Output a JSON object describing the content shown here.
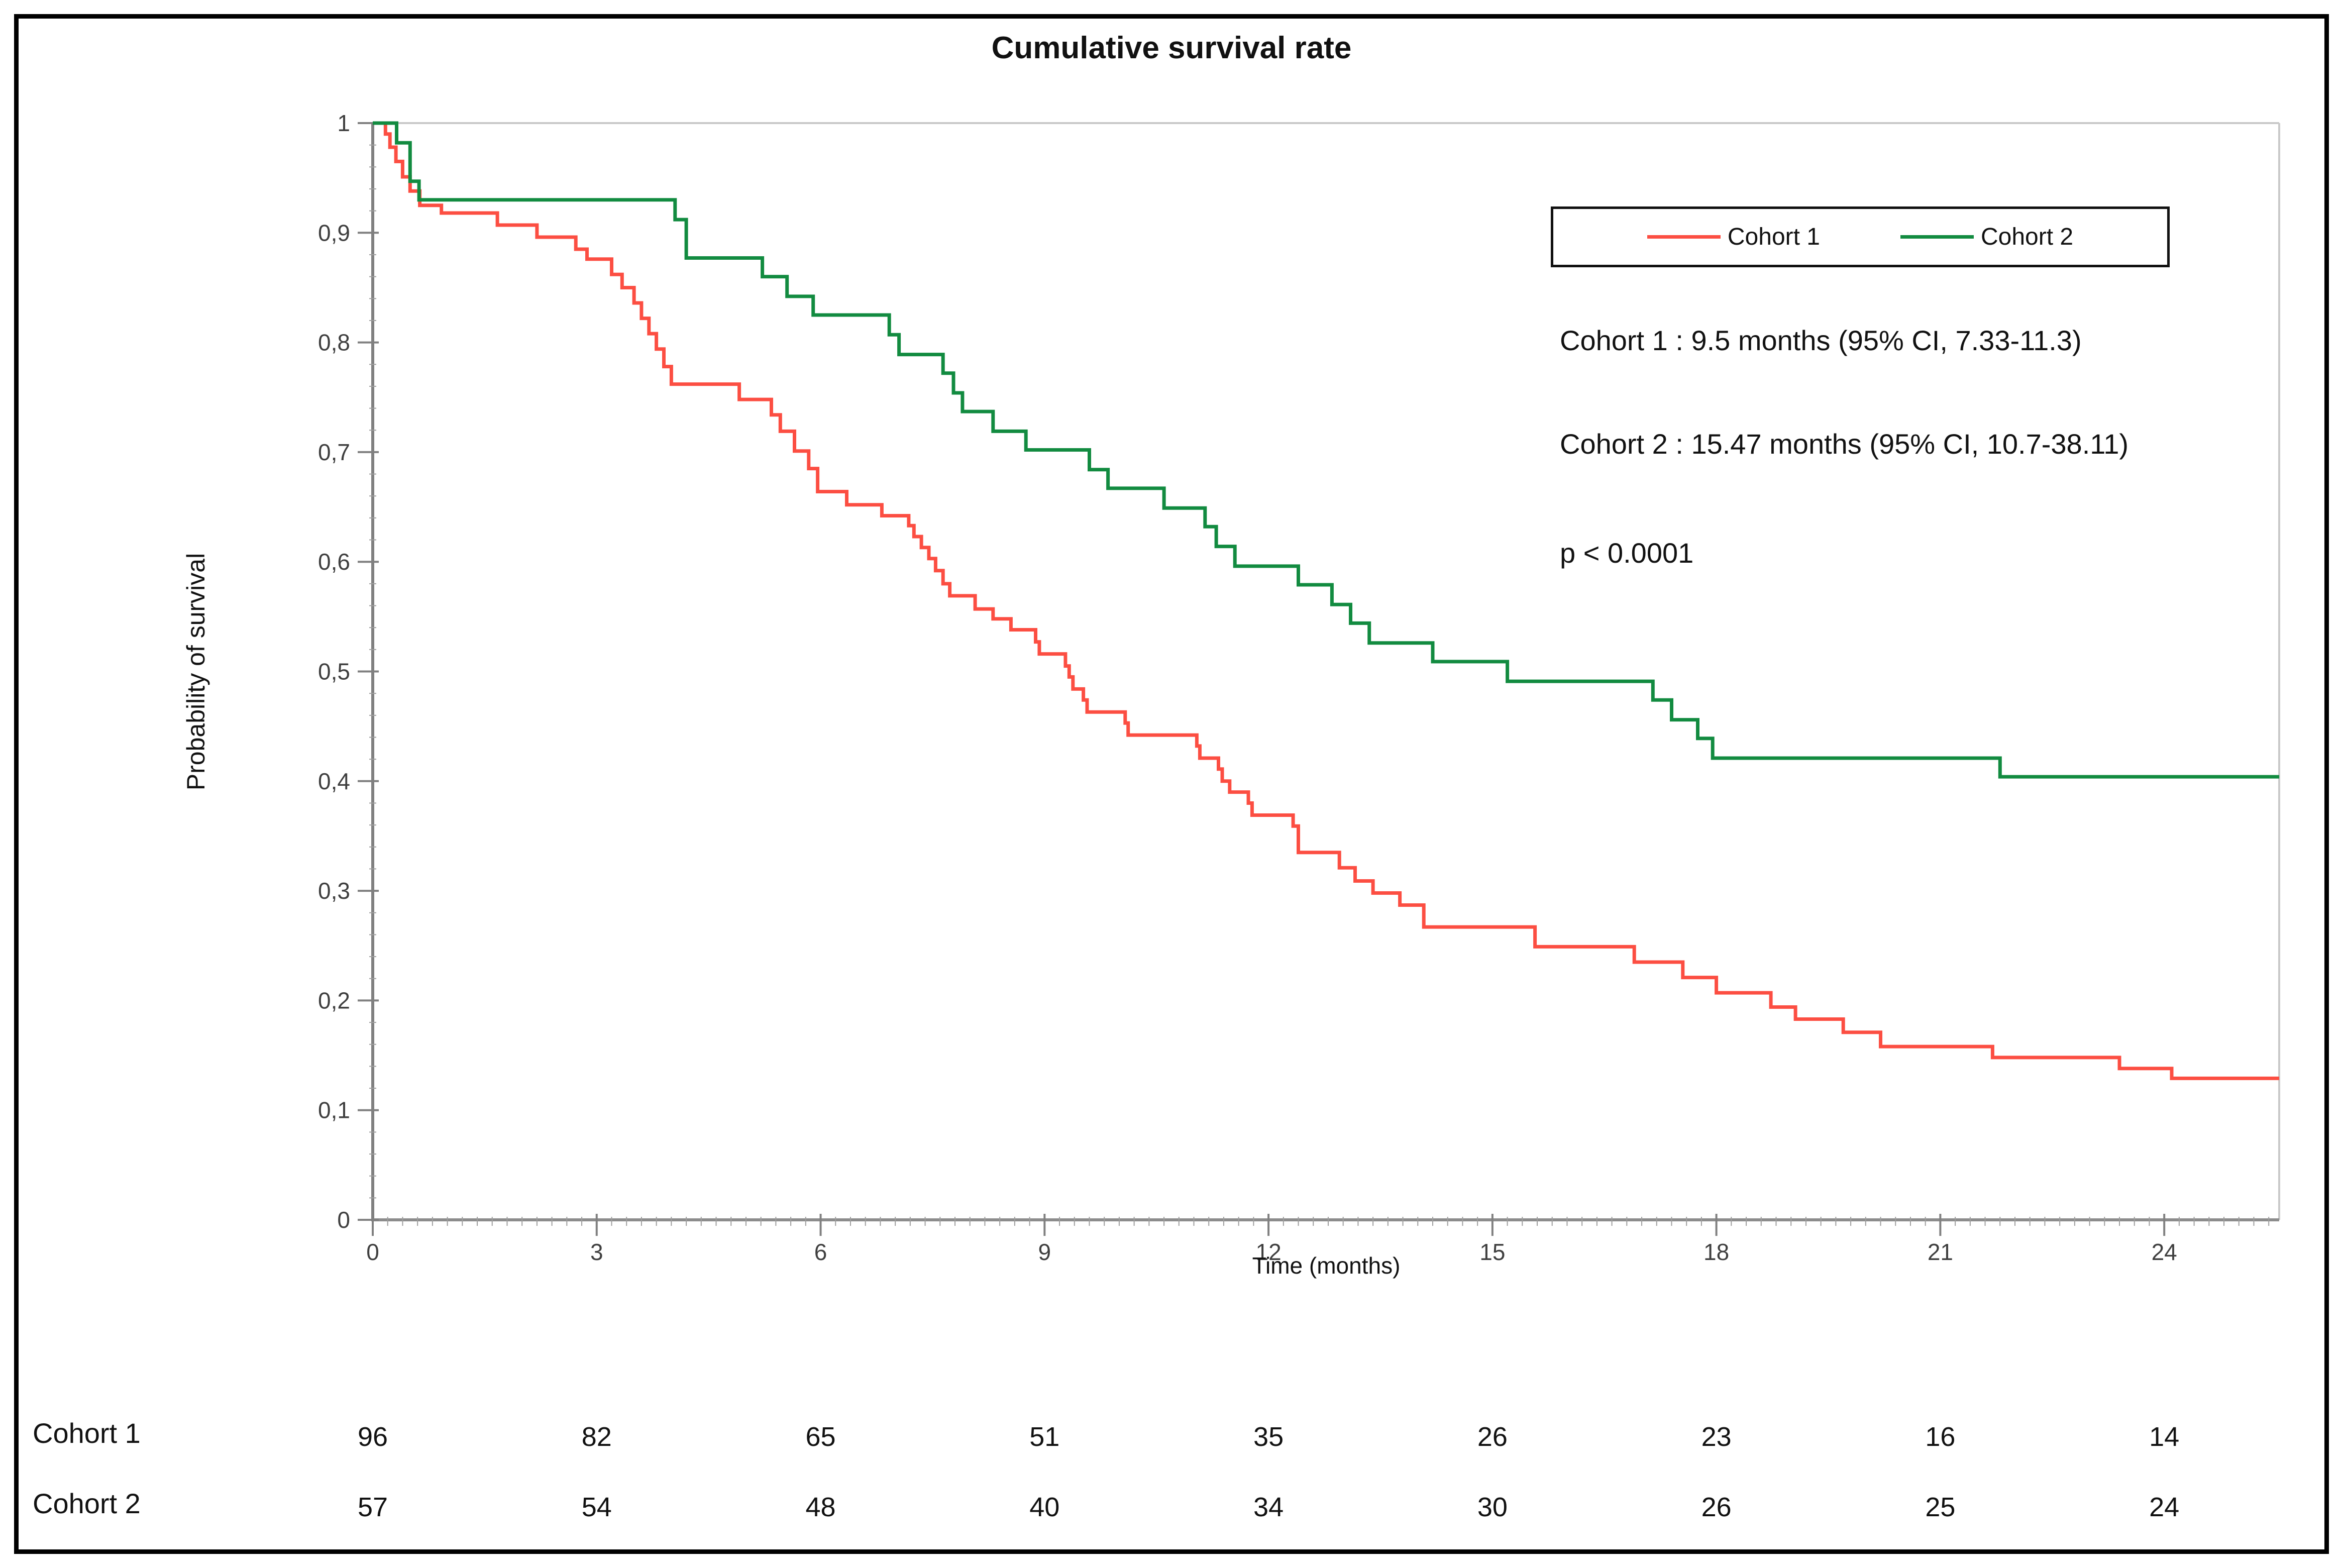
{
  "title": "Cumulative survival rate",
  "colors": {
    "cohort1": "#FC4E42",
    "cohort2": "#128B40",
    "axis": "#8C8C8C",
    "major_tick": "#808080",
    "minor_tick": "#9E9E9E",
    "tick_label": "#3F3F3F",
    "plot_border": "#C9C9C9",
    "text": "#111111"
  },
  "legend": {
    "items": [
      {
        "label": "Cohort 1",
        "color": "#FC4E42"
      },
      {
        "label": "Cohort 2",
        "color": "#128B40"
      }
    ]
  },
  "annotations": {
    "line1": "Cohort 1 : 9.5 months (95% CI, 7.33-11.3)",
    "line2": "Cohort 2 : 15.47 months (95% CI, 10.7-38.11)",
    "line3": "p < 0.0001"
  },
  "chart_data": {
    "type": "line",
    "subtype": "kaplan-meier-step",
    "title": "Cumulative survival rate",
    "xlabel": "Time (months)",
    "ylabel": "Probability of survival",
    "xlim": [
      0,
      25.54
    ],
    "ylim": [
      0,
      1
    ],
    "grid": false,
    "legend_position": "top-right-inside",
    "x_ticks": [
      0,
      3,
      6,
      9,
      12,
      15,
      18,
      21,
      24
    ],
    "x_tick_labels": [
      "0",
      "3",
      "6",
      "9",
      "12",
      "15",
      "18",
      "21",
      "24"
    ],
    "y_ticks": [
      {
        "v": 1.0,
        "label": "1"
      },
      {
        "v": 0.9,
        "label": "0,9"
      },
      {
        "v": 0.8,
        "label": "0,8"
      },
      {
        "v": 0.7,
        "label": "0,7"
      },
      {
        "v": 0.6,
        "label": "0,6"
      },
      {
        "v": 0.5,
        "label": "0,5"
      },
      {
        "v": 0.4,
        "label": "0,4"
      },
      {
        "v": 0.3,
        "label": "0,3"
      },
      {
        "v": 0.2,
        "label": "0,2"
      },
      {
        "v": 0.1,
        "label": "0,1"
      },
      {
        "v": 0.0,
        "label": "0"
      }
    ],
    "series": [
      {
        "name": "Cohort 1",
        "color": "#FC4E42",
        "median_months": 9.5,
        "ci_95": "7.33-11.3",
        "points": [
          [
            0,
            1
          ],
          [
            0.17,
            0.99
          ],
          [
            0.23,
            0.978
          ],
          [
            0.31,
            0.965
          ],
          [
            0.4,
            0.951
          ],
          [
            0.5,
            0.938
          ],
          [
            0.63,
            0.925
          ],
          [
            0.92,
            0.918
          ],
          [
            1.67,
            0.907
          ],
          [
            2.2,
            0.896
          ],
          [
            2.72,
            0.885
          ],
          [
            2.87,
            0.876
          ],
          [
            3.2,
            0.862
          ],
          [
            3.34,
            0.85
          ],
          [
            3.5,
            0.836
          ],
          [
            3.6,
            0.822
          ],
          [
            3.7,
            0.808
          ],
          [
            3.8,
            0.794
          ],
          [
            3.9,
            0.778
          ],
          [
            4.0,
            0.762
          ],
          [
            4.91,
            0.748
          ],
          [
            5.34,
            0.734
          ],
          [
            5.46,
            0.719
          ],
          [
            5.65,
            0.701
          ],
          [
            5.84,
            0.685
          ],
          [
            5.96,
            0.664
          ],
          [
            6.35,
            0.652
          ],
          [
            6.82,
            0.642
          ],
          [
            7.18,
            0.633
          ],
          [
            7.25,
            0.623
          ],
          [
            7.35,
            0.613
          ],
          [
            7.45,
            0.603
          ],
          [
            7.54,
            0.592
          ],
          [
            7.64,
            0.58
          ],
          [
            7.73,
            0.569
          ],
          [
            8.07,
            0.557
          ],
          [
            8.31,
            0.548
          ],
          [
            8.55,
            0.538
          ],
          [
            8.88,
            0.527
          ],
          [
            8.93,
            0.516
          ],
          [
            9.28,
            0.505
          ],
          [
            9.33,
            0.495
          ],
          [
            9.38,
            0.484
          ],
          [
            9.52,
            0.474
          ],
          [
            9.57,
            0.463
          ],
          [
            10.08,
            0.453
          ],
          [
            10.12,
            0.442
          ],
          [
            11.04,
            0.432
          ],
          [
            11.08,
            0.421
          ],
          [
            11.33,
            0.411
          ],
          [
            11.38,
            0.4
          ],
          [
            11.48,
            0.39
          ],
          [
            11.73,
            0.38
          ],
          [
            11.78,
            0.369
          ],
          [
            12.33,
            0.359
          ],
          [
            12.4,
            0.335
          ],
          [
            12.95,
            0.321
          ],
          [
            13.16,
            0.309
          ],
          [
            13.4,
            0.298
          ],
          [
            13.76,
            0.287
          ],
          [
            14.08,
            0.267
          ],
          [
            15.57,
            0.249
          ],
          [
            16.9,
            0.235
          ],
          [
            17.55,
            0.221
          ],
          [
            18.0,
            0.207
          ],
          [
            18.73,
            0.194
          ],
          [
            19.06,
            0.183
          ],
          [
            19.7,
            0.171
          ],
          [
            20.2,
            0.158
          ],
          [
            21.7,
            0.148
          ],
          [
            23.4,
            0.138
          ],
          [
            24.1,
            0.129
          ]
        ]
      },
      {
        "name": "Cohort 2",
        "color": "#128B40",
        "median_months": 15.47,
        "ci_95": "10.7-38.11",
        "points": [
          [
            0,
            1
          ],
          [
            0.32,
            0.982
          ],
          [
            0.5,
            0.947
          ],
          [
            0.62,
            0.93
          ],
          [
            4.05,
            0.912
          ],
          [
            4.2,
            0.877
          ],
          [
            5.22,
            0.86
          ],
          [
            5.55,
            0.842
          ],
          [
            5.9,
            0.825
          ],
          [
            6.92,
            0.807
          ],
          [
            7.05,
            0.789
          ],
          [
            7.64,
            0.772
          ],
          [
            7.78,
            0.754
          ],
          [
            7.9,
            0.737
          ],
          [
            8.31,
            0.719
          ],
          [
            8.75,
            0.702
          ],
          [
            9.6,
            0.684
          ],
          [
            9.85,
            0.667
          ],
          [
            10.6,
            0.649
          ],
          [
            11.15,
            0.632
          ],
          [
            11.3,
            0.614
          ],
          [
            11.55,
            0.596
          ],
          [
            12.4,
            0.579
          ],
          [
            12.85,
            0.561
          ],
          [
            13.1,
            0.544
          ],
          [
            13.35,
            0.526
          ],
          [
            14.2,
            0.509
          ],
          [
            15.2,
            0.491
          ],
          [
            17.15,
            0.474
          ],
          [
            17.4,
            0.456
          ],
          [
            17.75,
            0.439
          ],
          [
            17.95,
            0.421
          ],
          [
            21.8,
            0.404
          ]
        ]
      }
    ],
    "p_value": "p < 0.0001"
  },
  "risk_table": {
    "time_points": [
      0,
      3,
      6,
      9,
      12,
      15,
      18,
      21,
      24
    ],
    "rows": [
      {
        "label": "Cohort 1",
        "values": [
          "96",
          "82",
          "65",
          "51",
          "35",
          "26",
          "23",
          "16",
          "14"
        ]
      },
      {
        "label": "Cohort 2",
        "values": [
          "57",
          "54",
          "48",
          "40",
          "34",
          "30",
          "26",
          "25",
          "24"
        ]
      }
    ]
  }
}
